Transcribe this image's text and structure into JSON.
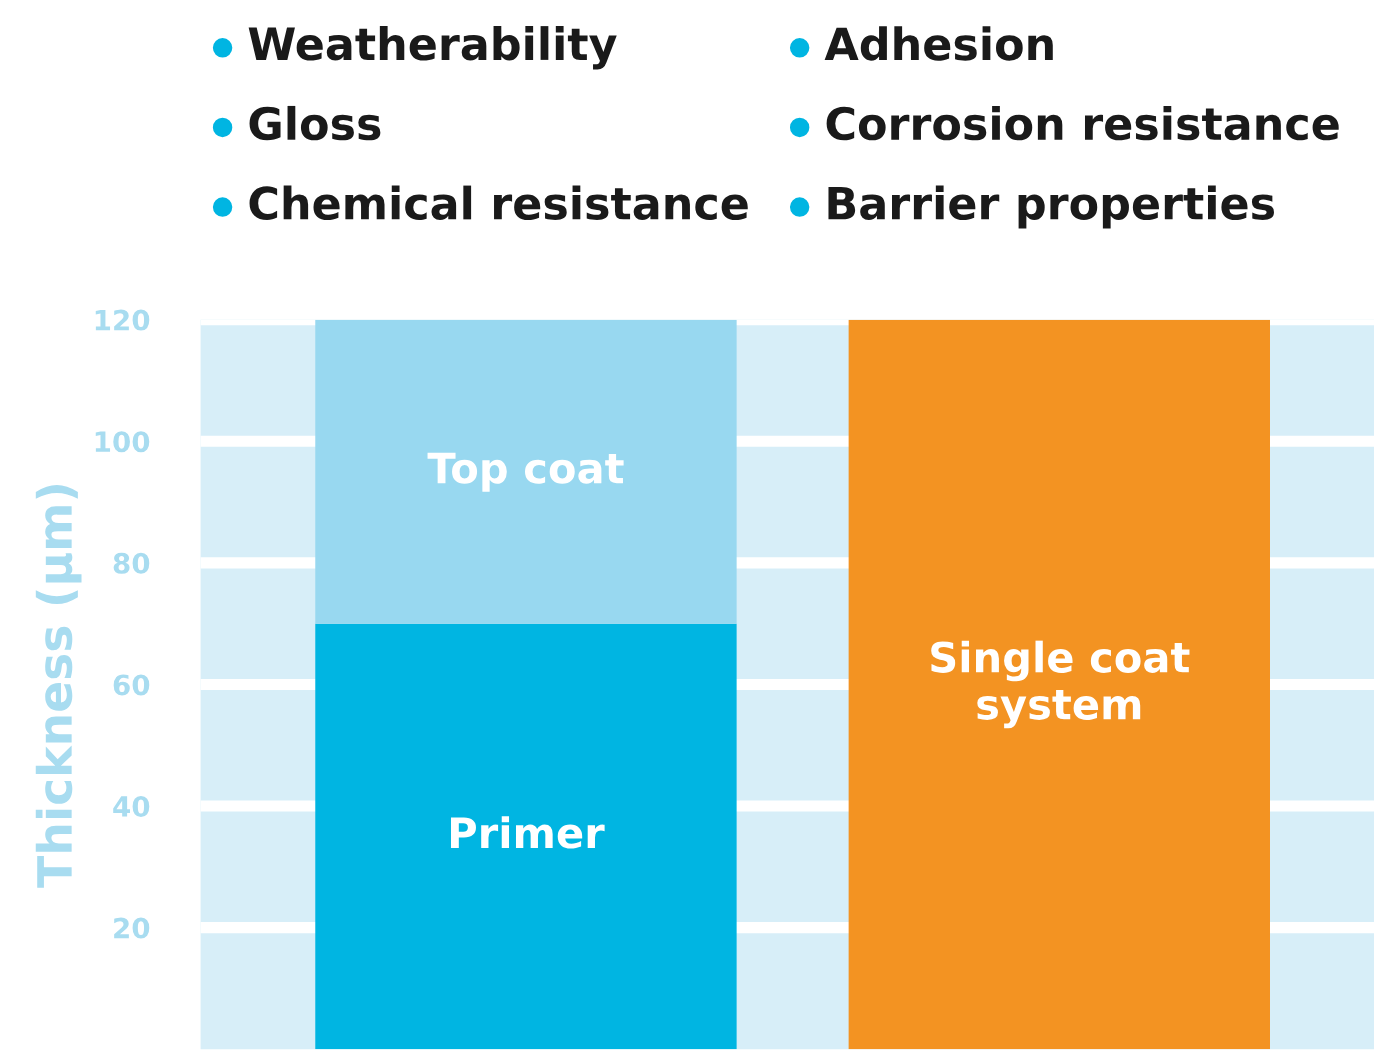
{
  "chart_data": {
    "type": "bar",
    "stacked": true,
    "categories": [
      null,
      null
    ],
    "ylabel": "Thickness (µm)",
    "ylim": [
      0,
      120
    ],
    "yticks": [
      20,
      40,
      60,
      80,
      100,
      120
    ],
    "grid": "y",
    "tick_labels": "y",
    "series": [
      {
        "name": "Primer",
        "color": "#00b5e2",
        "values": [
          70,
          null
        ]
      },
      {
        "name": "Top coat",
        "color": "#98d8f0",
        "values": [
          50,
          null
        ]
      },
      {
        "name": "Single coat system",
        "color": "#f39322",
        "values": [
          null,
          120
        ]
      }
    ],
    "annotations": [
      "Weatherability",
      "Gloss",
      "Chemical resistance",
      "Adhesion",
      "Corrosion resistance",
      "Barrier properties"
    ]
  }
}
